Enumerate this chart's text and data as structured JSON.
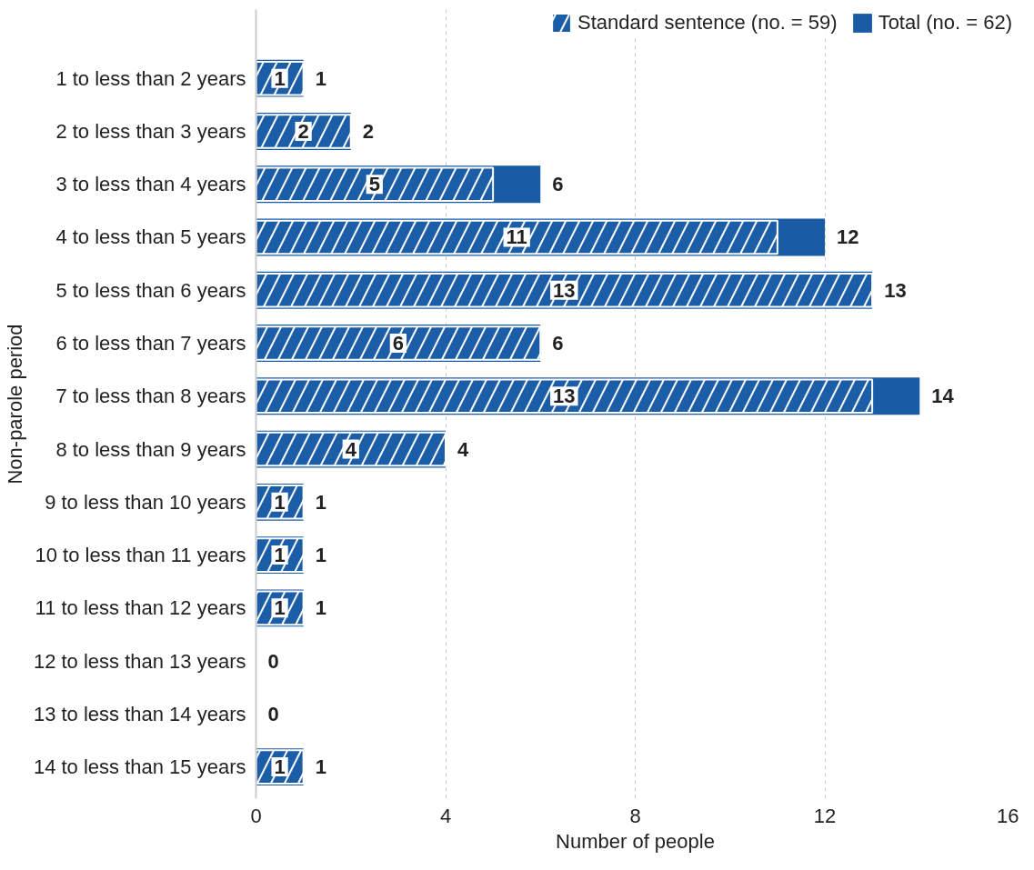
{
  "chart_data": {
    "type": "bar",
    "orientation": "horizontal",
    "xlabel": "Number of people",
    "ylabel": "Non-parole period",
    "categories": [
      "1 to less than 2 years",
      "2 to less than 3 years",
      "3 to less than 4 years",
      "4 to less than 5 years",
      "5 to less than 6 years",
      "6 to less than 7 years",
      "7 to less than 8 years",
      "8 to less than 9 years",
      "9 to less than 10 years",
      "10 to less than 11 years",
      "11 to less than 12 years",
      "12 to less than 13 years",
      "13 to less than 14 years",
      "14 to less than 15 years"
    ],
    "series": [
      {
        "name": "Total (no. = 62)",
        "color": "#1a5ba6",
        "values": [
          1,
          2,
          6,
          12,
          13,
          6,
          14,
          4,
          1,
          1,
          1,
          0,
          0,
          1
        ],
        "value_labels": [
          "1",
          "2",
          "6",
          "12",
          "13",
          "6",
          "14",
          "4",
          "1",
          "1",
          "1",
          "0",
          "0",
          "1"
        ]
      },
      {
        "name": "Standard sentence (no. = 59)",
        "color": "#1c5da8",
        "values": [
          1,
          2,
          5,
          11,
          13,
          6,
          13,
          4,
          1,
          1,
          1,
          0,
          0,
          1
        ],
        "value_labels": [
          "1",
          "2",
          "5",
          "11",
          "13",
          "6",
          "13",
          "4",
          "1",
          "1",
          "1",
          null,
          null,
          "1"
        ]
      }
    ],
    "xlim": [
      0,
      16
    ],
    "xticks": [
      0,
      4,
      8,
      12,
      16
    ],
    "grid": "x",
    "legend": "top right"
  }
}
